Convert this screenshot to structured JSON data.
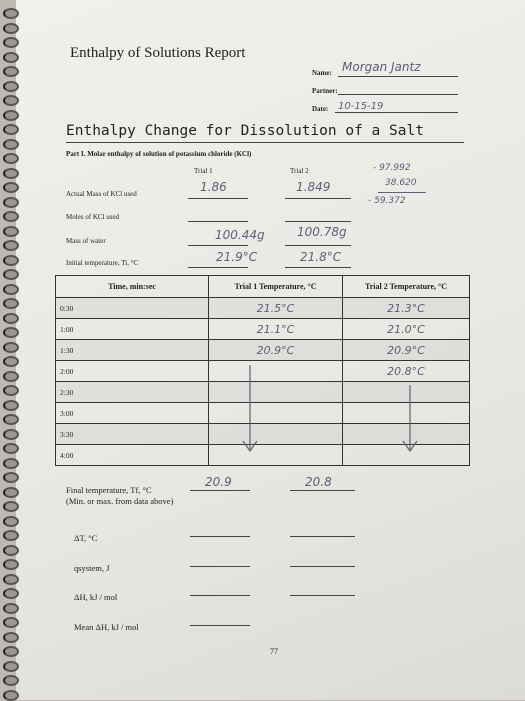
{
  "header": {
    "title": "Enthalpy of Solutions Report",
    "name_label": "Name:",
    "name": "Morgan Jantz",
    "partner_label": "Partner:",
    "date_label": "Date:",
    "date": "10-15-19"
  },
  "section": {
    "title": "Enthalpy Change for Dissolution of a Salt",
    "part": "Part I. Molar enthalpy of solution of potassium chloride (KCl)"
  },
  "trials": [
    "Trial 1",
    "Trial 2"
  ],
  "calculation": [
    "- 97.992",
    "38.620",
    "- 59.372"
  ],
  "measurements": [
    {
      "label": "Actual Mass of KCl used",
      "values": [
        "1.86",
        "1.849"
      ]
    },
    {
      "label": "Moles of KCl used"
    },
    {
      "label": "Mass of water",
      "values": [
        "100.44g",
        "100.78g"
      ]
    },
    {
      "label": "Initial temperature, Ti, °C",
      "values": [
        "21.9°C",
        "21.8°C"
      ]
    }
  ],
  "table": {
    "headers": [
      "Time, min:sec",
      "Trial 1 Temperature, °C",
      "Trial 2 Temperature, °C"
    ],
    "rows": [
      {
        "time": "0:30",
        "trial1": "21.5°C",
        "trial2": "21.3°C"
      },
      {
        "time": "1:00",
        "trial1": "21.1°C",
        "trial2": "21.0°C"
      },
      {
        "time": "1:30",
        "trial1": "20.9°C",
        "trial2": "20.9°C"
      },
      {
        "time": "2:00",
        "trial2": "20.8°C"
      },
      {
        "time": "2:30"
      },
      {
        "time": "3:00"
      },
      {
        "time": "3:30"
      },
      {
        "time": "4:00"
      }
    ]
  },
  "results": [
    {
      "label": "Final temperature, Tf, °C",
      "note": "(Min. or max. from data above)",
      "values": [
        "20.9",
        "20.8"
      ]
    },
    {
      "label": "ΔT, °C"
    },
    {
      "label": "qsystem, J"
    },
    {
      "label": "ΔH, kJ / mol"
    },
    {
      "label": "Mean ΔH, kJ / mol"
    }
  ],
  "page_number": "77"
}
